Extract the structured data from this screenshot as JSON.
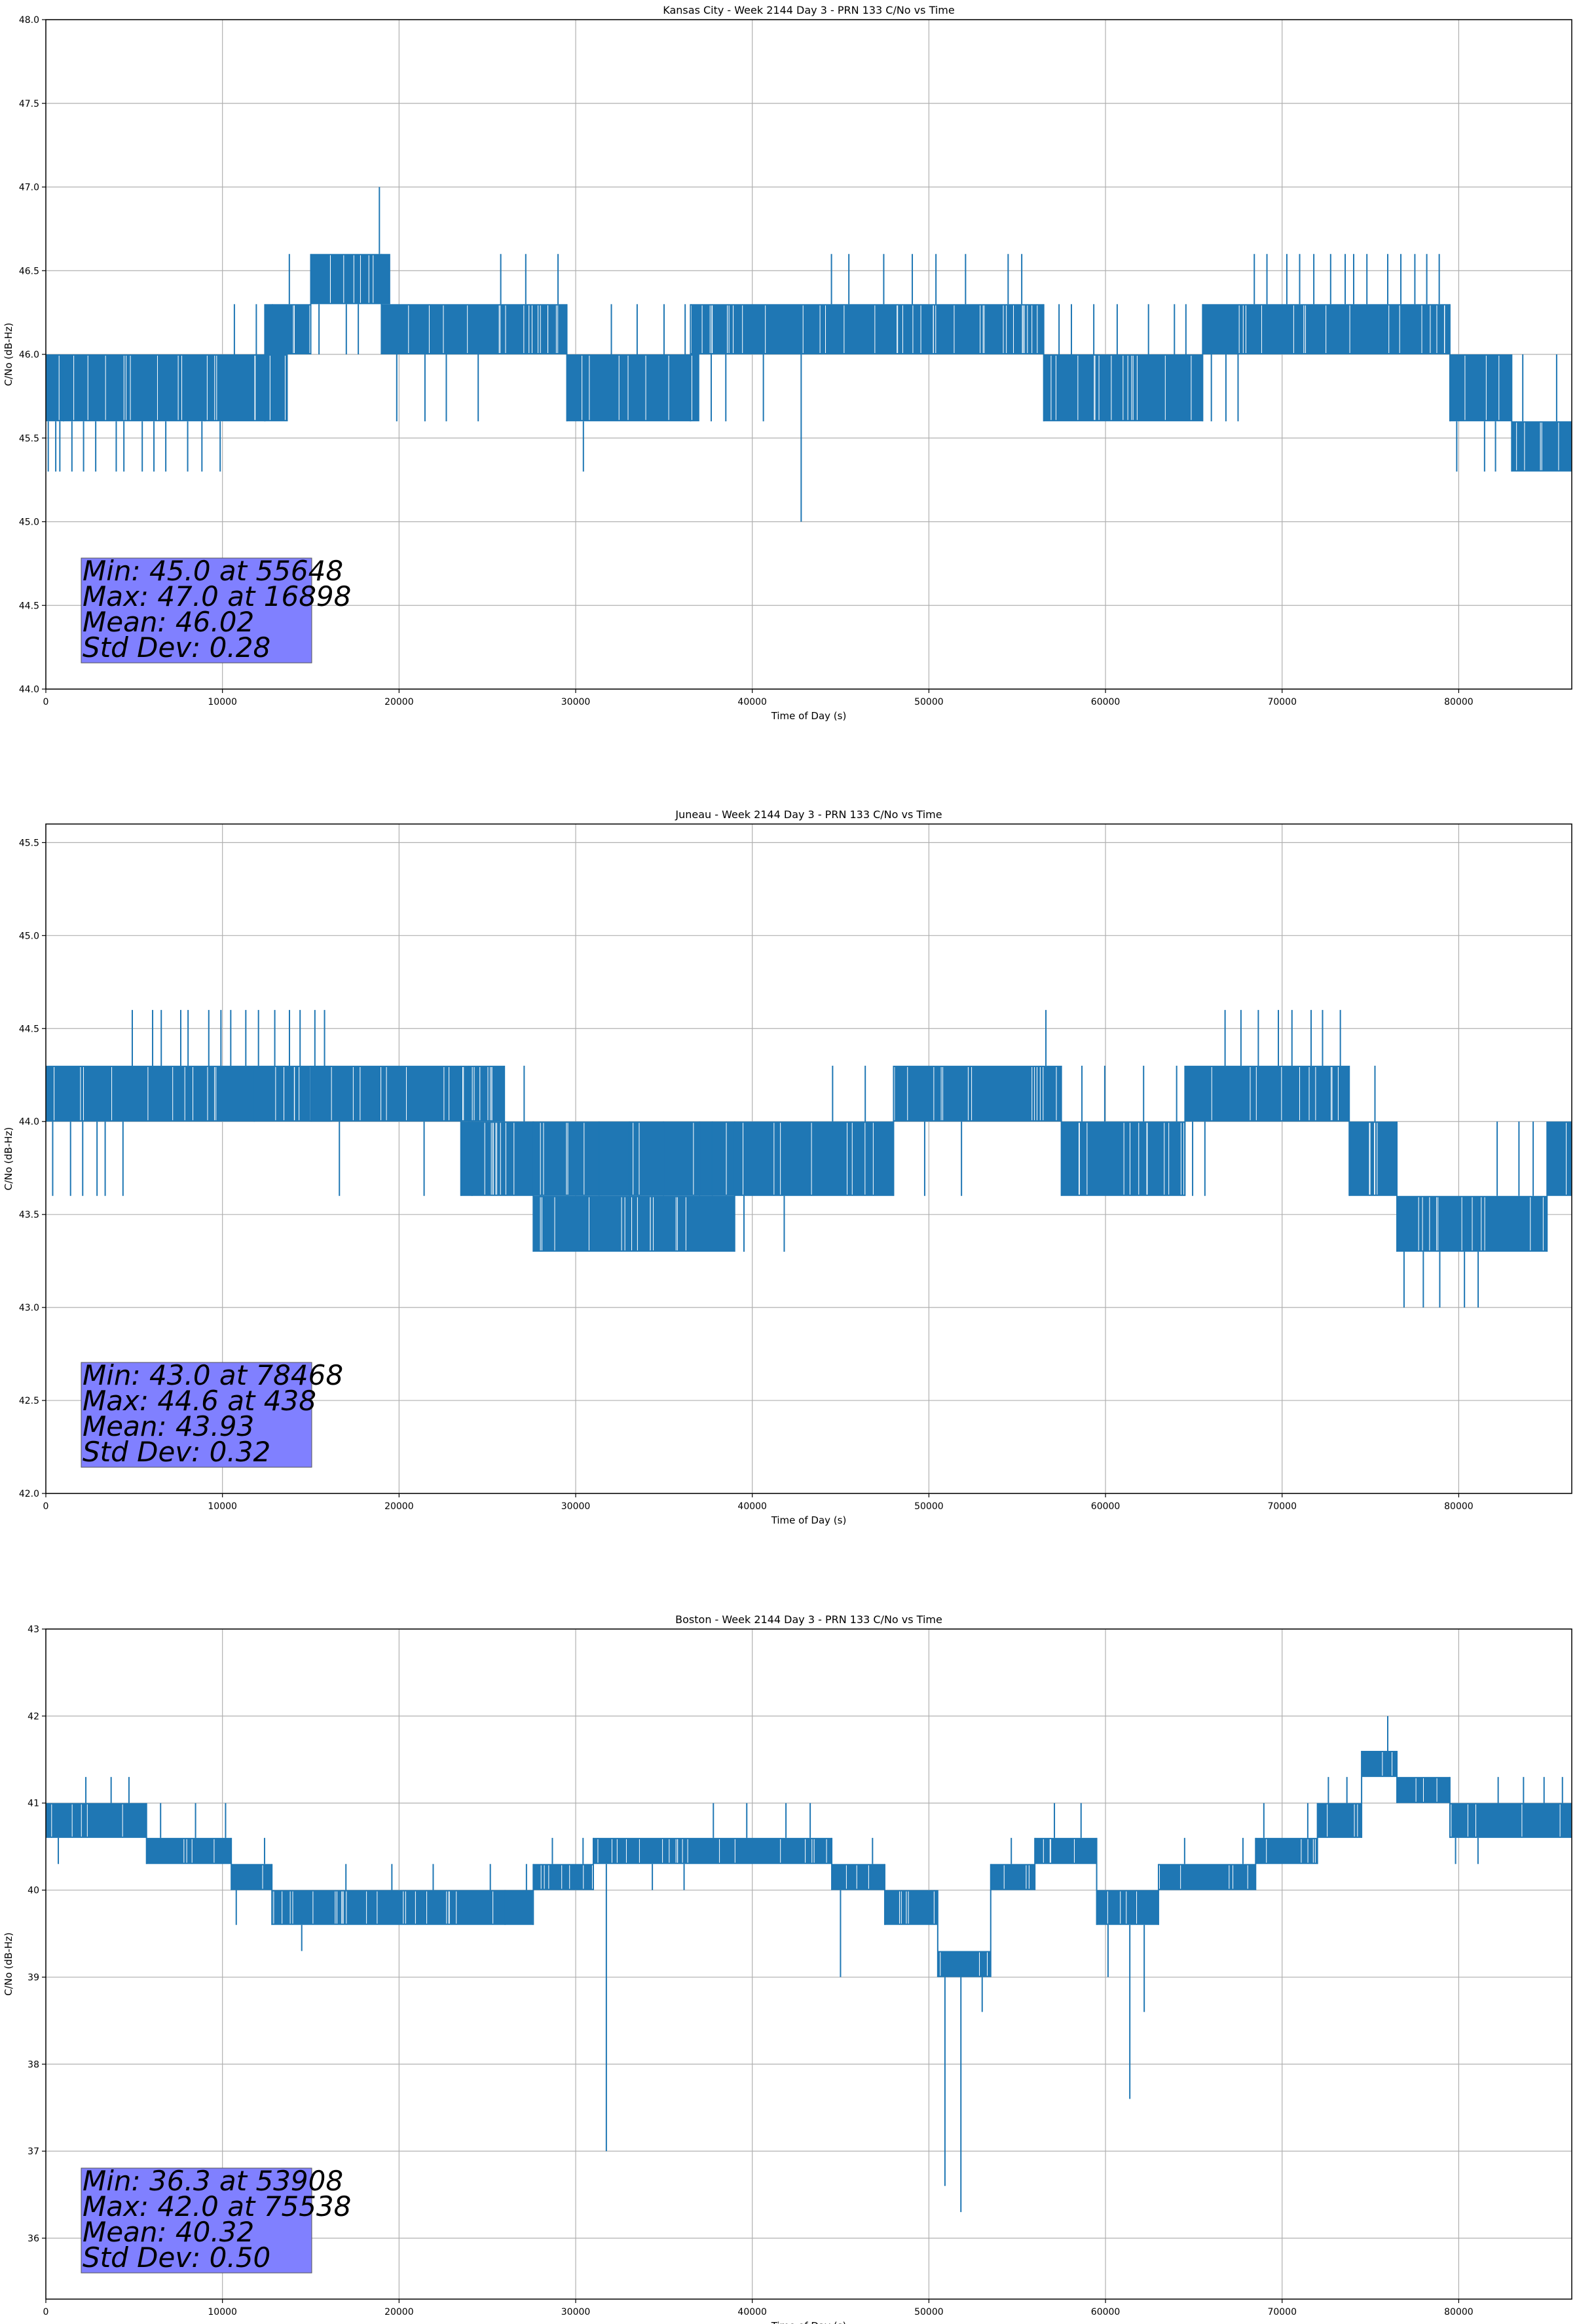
{
  "colors": {
    "series": "#1f77b4",
    "stats_box": "#8080ff",
    "grid": "#b0b0b0",
    "axes": "#000000"
  },
  "chart_data": [
    {
      "type": "line",
      "title": "Kansas City - Week 2144 Day 3 - PRN 133 C/No vs Time",
      "xlabel": "Time of Day (s)",
      "ylabel": "C/No (dB-Hz)",
      "xlim": [
        0,
        86400
      ],
      "ylim": [
        44.0,
        48.0
      ],
      "xticks": [
        0,
        10000,
        20000,
        30000,
        40000,
        50000,
        60000,
        70000,
        80000
      ],
      "yticks": [
        44.0,
        44.5,
        45.0,
        45.5,
        46.0,
        46.5,
        47.0,
        47.5,
        48.0
      ],
      "ytick_labels": [
        "44.0",
        "44.5",
        "45.0",
        "45.5",
        "46.0",
        "46.5",
        "47.0",
        "47.5",
        "48.0"
      ],
      "grid": true,
      "bands": [
        {
          "x0": 0,
          "x1": 1000,
          "lo": 45.6,
          "hi": 46.0,
          "spikes_down": [
            45.3,
            45.3,
            45.3
          ],
          "spikes_up": []
        },
        {
          "x0": 1000,
          "x1": 9000,
          "lo": 45.6,
          "hi": 46.0,
          "spikes_down": [
            45.3,
            45.3,
            45.3,
            45.3,
            45.3,
            45.3,
            45.3,
            45.3,
            45.3,
            45.3
          ],
          "spikes_up": []
        },
        {
          "x0": 9000,
          "x1": 13700,
          "lo": 45.6,
          "hi": 46.0,
          "spikes_down": [
            45.3
          ],
          "spikes_up": [
            46.3,
            46.3,
            46.3
          ]
        },
        {
          "x0": 12400,
          "x1": 15000,
          "lo": 46.0,
          "hi": 46.3,
          "spikes_down": [],
          "spikes_up": [
            46.6
          ]
        },
        {
          "x0": 15000,
          "x1": 19500,
          "lo": 46.3,
          "hi": 46.6,
          "spikes_down": [
            46.0,
            46.0,
            46.0
          ],
          "spikes_up": [
            47.0
          ]
        },
        {
          "x0": 19000,
          "x1": 29500,
          "lo": 46.0,
          "hi": 46.3,
          "spikes_down": [
            45.6,
            45.6,
            45.6,
            45.6
          ],
          "spikes_up": [
            46.6,
            46.6,
            46.6
          ]
        },
        {
          "x0": 29500,
          "x1": 37000,
          "lo": 45.6,
          "hi": 46.0,
          "spikes_down": [
            45.3
          ],
          "spikes_up": [
            46.3,
            46.3,
            46.3,
            46.3
          ]
        },
        {
          "x0": 36500,
          "x1": 56500,
          "lo": 46.0,
          "hi": 46.3,
          "spikes_down": [
            45.6,
            45.6,
            45.6,
            45.0
          ],
          "spikes_up": [
            46.6,
            46.6,
            46.6,
            46.6,
            46.6,
            46.6,
            46.6,
            46.6
          ]
        },
        {
          "x0": 56500,
          "x1": 65500,
          "lo": 45.6,
          "hi": 46.0,
          "spikes_down": [],
          "spikes_up": [
            46.3,
            46.3,
            46.3,
            46.3,
            46.3,
            46.3,
            46.3
          ]
        },
        {
          "x0": 65500,
          "x1": 79500,
          "lo": 46.0,
          "hi": 46.3,
          "spikes_down": [
            45.6,
            45.6,
            45.6
          ],
          "spikes_up": [
            46.6,
            46.6,
            46.6,
            46.6,
            46.6,
            46.6,
            46.6,
            46.6,
            46.6,
            46.6,
            46.6,
            46.6,
            46.6,
            46.6
          ]
        },
        {
          "x0": 79500,
          "x1": 83000,
          "lo": 45.6,
          "hi": 46.0,
          "spikes_down": [
            45.3,
            45.3,
            45.3
          ],
          "spikes_up": []
        },
        {
          "x0": 83000,
          "x1": 86400,
          "lo": 45.3,
          "hi": 45.6,
          "spikes_down": [],
          "spikes_up": [
            46.0,
            46.0
          ]
        }
      ],
      "stats": {
        "min_label": "Min: 45.0 at 55648",
        "max_label": "Max: 47.0 at 16898",
        "mean_label": "Mean: 46.02",
        "std_label": "Std Dev: 0.28",
        "min": 45.0,
        "min_time": 55648,
        "max": 47.0,
        "max_time": 16898,
        "mean": 46.02,
        "std": 0.28
      }
    },
    {
      "type": "line",
      "title": "Juneau - Week 2144 Day 3 - PRN 133 C/No vs Time",
      "xlabel": "Time of Day (s)",
      "ylabel": "C/No (dB-Hz)",
      "xlim": [
        0,
        86400
      ],
      "ylim": [
        42.0,
        45.6
      ],
      "xticks": [
        0,
        10000,
        20000,
        30000,
        40000,
        50000,
        60000,
        70000,
        80000
      ],
      "yticks": [
        42.0,
        42.5,
        43.0,
        43.5,
        44.0,
        44.5,
        45.0,
        45.5
      ],
      "ytick_labels": [
        "42.0",
        "42.5",
        "43.0",
        "43.5",
        "44.0",
        "44.5",
        "45.0",
        "45.5"
      ],
      "grid": true,
      "bands": [
        {
          "x0": 0,
          "x1": 11800,
          "lo": 44.0,
          "hi": 44.3,
          "spikes_down": [
            43.6,
            43.6,
            43.6,
            43.6,
            43.6,
            43.6
          ],
          "spikes_up": [
            44.6,
            44.6,
            44.6,
            44.6,
            44.6,
            44.6,
            44.6,
            44.6,
            44.6
          ]
        },
        {
          "x0": 11800,
          "x1": 16200,
          "lo": 44.0,
          "hi": 44.3,
          "spikes_down": [],
          "spikes_up": [
            44.6,
            44.6,
            44.6,
            44.6,
            44.6,
            44.6
          ]
        },
        {
          "x0": 15000,
          "x1": 26000,
          "lo": 44.0,
          "hi": 44.3,
          "spikes_down": [
            43.6,
            43.6,
            43.6
          ],
          "spikes_up": []
        },
        {
          "x0": 23500,
          "x1": 27600,
          "lo": 43.6,
          "hi": 44.0,
          "spikes_down": [],
          "spikes_up": [
            44.3,
            44.3,
            44.3
          ]
        },
        {
          "x0": 27600,
          "x1": 39000,
          "lo": 43.6,
          "hi": 44.0,
          "spikes_down": [],
          "spikes_up": []
        },
        {
          "x0": 27600,
          "x1": 39000,
          "lo": 43.3,
          "hi": 43.6,
          "spikes_down": [
            43.3,
            43.3
          ],
          "spikes_up": [
            44.0,
            44.0,
            44.0,
            44.0,
            44.0
          ]
        },
        {
          "x0": 39000,
          "x1": 48000,
          "lo": 43.6,
          "hi": 44.0,
          "spikes_down": [
            43.3,
            43.3
          ],
          "spikes_up": [
            44.3,
            44.3
          ]
        },
        {
          "x0": 48000,
          "x1": 57500,
          "lo": 44.0,
          "hi": 44.3,
          "spikes_down": [
            43.6,
            43.6
          ],
          "spikes_up": [
            44.6
          ]
        },
        {
          "x0": 57500,
          "x1": 64500,
          "lo": 43.6,
          "hi": 44.0,
          "spikes_down": [],
          "spikes_up": [
            44.3,
            44.3,
            44.3,
            44.3
          ]
        },
        {
          "x0": 64500,
          "x1": 73800,
          "lo": 44.0,
          "hi": 44.3,
          "spikes_down": [
            43.6,
            43.6
          ],
          "spikes_up": [
            44.6,
            44.6,
            44.6,
            44.6,
            44.6,
            44.6,
            44.6,
            44.6
          ]
        },
        {
          "x0": 73800,
          "x1": 76500,
          "lo": 43.6,
          "hi": 44.0,
          "spikes_down": [],
          "spikes_up": [
            44.3
          ]
        },
        {
          "x0": 76500,
          "x1": 85000,
          "lo": 43.3,
          "hi": 43.6,
          "spikes_down": [
            43.0,
            43.0,
            43.0,
            43.0,
            43.0
          ],
          "spikes_up": [
            44.0,
            44.0,
            44.0
          ]
        },
        {
          "x0": 85000,
          "x1": 86400,
          "lo": 43.6,
          "hi": 44.0,
          "spikes_down": [],
          "spikes_up": []
        }
      ],
      "stats": {
        "min_label": "Min: 43.0 at 78468",
        "max_label": "Max: 44.6 at 438",
        "mean_label": "Mean: 43.93",
        "std_label": "Std Dev: 0.32",
        "min": 43.0,
        "min_time": 78468,
        "max": 44.6,
        "max_time": 438,
        "mean": 43.93,
        "std": 0.32
      }
    },
    {
      "type": "line",
      "title": "Boston - Week 2144 Day 3 - PRN 133 C/No vs Time",
      "xlabel": "Time of Day (s)",
      "ylabel": "C/No (dB-Hz)",
      "xlim": [
        0,
        86400
      ],
      "ylim": [
        35.3,
        43.0
      ],
      "xticks": [
        0,
        10000,
        20000,
        30000,
        40000,
        50000,
        60000,
        70000,
        80000
      ],
      "yticks": [
        36,
        37,
        38,
        39,
        40,
        41,
        42,
        43
      ],
      "ytick_labels": [
        "36",
        "37",
        "38",
        "39",
        "40",
        "41",
        "42",
        "43"
      ],
      "grid": true,
      "bands": [
        {
          "x0": 0,
          "x1": 5700,
          "lo": 40.6,
          "hi": 41.0,
          "spikes_down": [
            40.3
          ],
          "spikes_up": [
            41.3,
            41.3,
            41.3
          ]
        },
        {
          "x0": 5700,
          "x1": 10500,
          "lo": 40.3,
          "hi": 40.6,
          "spikes_down": [],
          "spikes_up": [
            41.0,
            41.0,
            41.0
          ]
        },
        {
          "x0": 10500,
          "x1": 12800,
          "lo": 40.0,
          "hi": 40.3,
          "spikes_down": [
            39.6
          ],
          "spikes_up": [
            40.6
          ]
        },
        {
          "x0": 12800,
          "x1": 26000,
          "lo": 39.6,
          "hi": 40.0,
          "spikes_down": [
            39.3
          ],
          "spikes_up": [
            40.3,
            40.3,
            40.3,
            40.3
          ]
        },
        {
          "x0": 26000,
          "x1": 27600,
          "lo": 39.6,
          "hi": 40.0,
          "spikes_down": [],
          "spikes_up": [
            40.3
          ]
        },
        {
          "x0": 27600,
          "x1": 31000,
          "lo": 40.0,
          "hi": 40.3,
          "spikes_down": [],
          "spikes_up": [
            40.6,
            40.6
          ]
        },
        {
          "x0": 31000,
          "x1": 44500,
          "lo": 40.3,
          "hi": 40.6,
          "spikes_down": [
            37.0,
            40.0,
            40.0
          ],
          "spikes_up": [
            41.0,
            41.0,
            41.0,
            41.0
          ]
        },
        {
          "x0": 44500,
          "x1": 47500,
          "lo": 40.0,
          "hi": 40.3,
          "spikes_down": [
            39.0
          ],
          "spikes_up": [
            40.6
          ]
        },
        {
          "x0": 47500,
          "x1": 50500,
          "lo": 39.6,
          "hi": 40.0,
          "spikes_down": [],
          "spikes_up": []
        },
        {
          "x0": 50500,
          "x1": 53500,
          "lo": 39.0,
          "hi": 39.3,
          "spikes_down": [
            36.6,
            36.3,
            38.6
          ],
          "spikes_up": []
        },
        {
          "x0": 53500,
          "x1": 56000,
          "lo": 40.0,
          "hi": 40.3,
          "spikes_down": [],
          "spikes_up": [
            40.6
          ]
        },
        {
          "x0": 56000,
          "x1": 59500,
          "lo": 40.3,
          "hi": 40.6,
          "spikes_down": [],
          "spikes_up": [
            41.0,
            41.0
          ]
        },
        {
          "x0": 59500,
          "x1": 63000,
          "lo": 39.6,
          "hi": 40.0,
          "spikes_down": [
            39.0,
            37.6,
            38.6
          ],
          "spikes_up": []
        },
        {
          "x0": 63000,
          "x1": 68500,
          "lo": 40.0,
          "hi": 40.3,
          "spikes_down": [],
          "spikes_up": [
            40.6,
            40.6
          ]
        },
        {
          "x0": 68500,
          "x1": 72000,
          "lo": 40.3,
          "hi": 40.6,
          "spikes_down": [],
          "spikes_up": [
            41.0,
            41.0
          ]
        },
        {
          "x0": 72000,
          "x1": 74500,
          "lo": 40.6,
          "hi": 41.0,
          "spikes_down": [],
          "spikes_up": [
            41.3,
            41.3
          ]
        },
        {
          "x0": 74500,
          "x1": 76500,
          "lo": 41.3,
          "hi": 41.6,
          "spikes_down": [],
          "spikes_up": [
            42.0
          ]
        },
        {
          "x0": 76500,
          "x1": 79500,
          "lo": 41.0,
          "hi": 41.3,
          "spikes_down": [],
          "spikes_up": []
        },
        {
          "x0": 79500,
          "x1": 86400,
          "lo": 40.6,
          "hi": 41.0,
          "spikes_down": [
            40.3,
            40.3
          ],
          "spikes_up": [
            41.3,
            41.3,
            41.3,
            41.3
          ]
        }
      ],
      "stats": {
        "min_label": "Min: 36.3 at 53908",
        "max_label": "Max: 42.0 at 75538",
        "mean_label": "Mean: 40.32",
        "std_label": "Std Dev: 0.50",
        "min": 36.3,
        "min_time": 53908,
        "max": 42.0,
        "max_time": 75538,
        "mean": 40.32,
        "std": 0.5
      }
    }
  ]
}
